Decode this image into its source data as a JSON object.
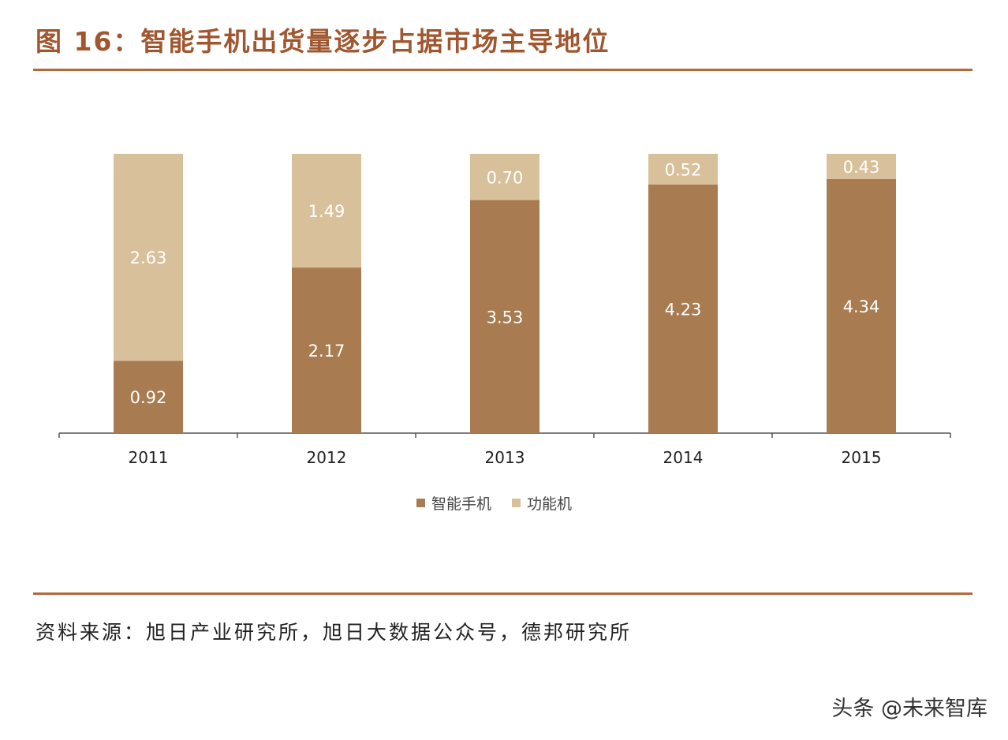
{
  "title": "图 16：智能手机出货量逐步占据市场主导地位",
  "source": "资料来源：旭日产业研究所，旭日大数据公众号，德邦研究所",
  "watermark": "头条 @未来智库",
  "colors": {
    "title": "#a0562e",
    "rule": "#b5693a",
    "smartphone": "#a87b51",
    "feature_phone": "#d8c09b"
  },
  "chart_data": {
    "type": "bar",
    "stacked": true,
    "normalized": true,
    "categories": [
      "2011",
      "2012",
      "2013",
      "2014",
      "2015"
    ],
    "series": [
      {
        "name": "智能手机",
        "values": [
          0.92,
          2.17,
          3.53,
          4.23,
          4.34
        ],
        "color": "#a87b51"
      },
      {
        "name": "功能机",
        "values": [
          2.63,
          1.49,
          0.7,
          0.52,
          0.43
        ],
        "color": "#d8c09b"
      }
    ],
    "data_labels": true,
    "grid": false,
    "legend": "bottom"
  }
}
